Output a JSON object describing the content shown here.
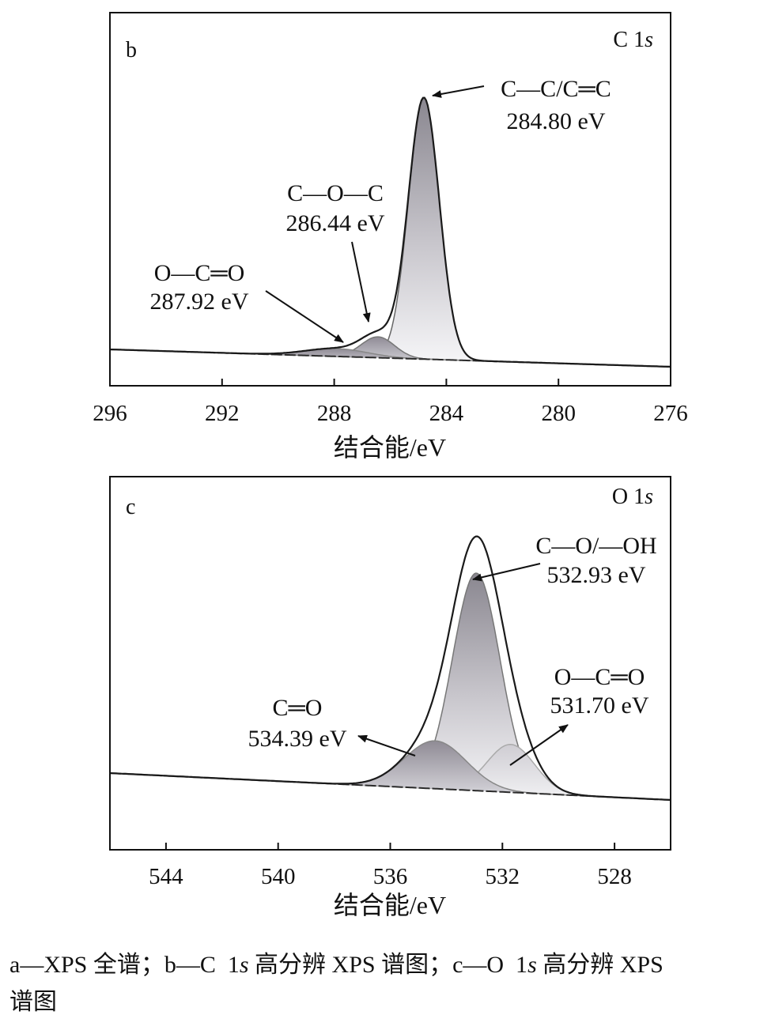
{
  "caption": {
    "part_a": "a—XPS 全谱；b—C  1",
    "part_a_italic": "s",
    "part_b": " 高分辨 XPS 谱图；c—O  1",
    "part_b_italic": "s",
    "part_c": " 高分辨 XPS",
    "line2": "谱图"
  },
  "chart_data": [
    {
      "type": "line",
      "panel_label": "b",
      "title_prefix": "C 1",
      "title_italic": "s",
      "xlabel": "结合能/eV",
      "ylabel": "",
      "xlim": [
        296,
        276
      ],
      "x_reversed": true,
      "xticks": [
        296,
        292,
        288,
        284,
        280,
        276
      ],
      "grid": false,
      "envelope_color": "#1a1a1a",
      "background_color": "#2a2a2a",
      "peaks": [
        {
          "center": 284.8,
          "relative_height": 1.0,
          "fwhm": 1.3,
          "label_line1": "C—C/C═C",
          "label_line2": "284.80 eV"
        },
        {
          "center": 286.44,
          "relative_height": 0.08,
          "fwhm": 1.4,
          "label_line1": "C—O—C",
          "label_line2": "286.44 eV"
        },
        {
          "center": 287.92,
          "relative_height": 0.03,
          "fwhm": 2.6,
          "label_line1": "O—C═O",
          "label_line2": "287.92 eV"
        }
      ]
    },
    {
      "type": "line",
      "panel_label": "c",
      "title_prefix": "O 1",
      "title_italic": "s",
      "xlabel": "结合能/eV",
      "ylabel": "",
      "xlim": [
        546,
        526
      ],
      "x_reversed": true,
      "xticks": [
        544,
        540,
        536,
        532,
        528
      ],
      "grid": false,
      "envelope_color": "#1a1a1a",
      "background_color": "#2a2a2a",
      "peaks": [
        {
          "center": 532.93,
          "relative_height": 1.0,
          "fwhm": 2.0,
          "label_line1": "C—O/—OH",
          "label_line2": "532.93 eV"
        },
        {
          "center": 531.7,
          "relative_height": 0.22,
          "fwhm": 2.0,
          "label_line1": "O—C═O",
          "label_line2": "531.70 eV"
        },
        {
          "center": 534.39,
          "relative_height": 0.22,
          "fwhm": 2.6,
          "label_line1": "C═O",
          "label_line2": "534.39 eV"
        }
      ]
    }
  ]
}
